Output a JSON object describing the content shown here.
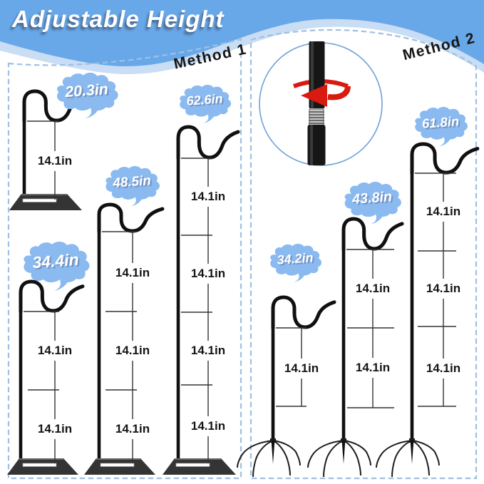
{
  "title": "Adjustable Height",
  "panels": [
    {
      "method_label": "Method 1",
      "mount_type": "base-plate"
    },
    {
      "method_label": "Method 2",
      "mount_type": "ground-stake"
    }
  ],
  "detail_inset": {
    "icon": "screw-together-rotation-icon",
    "parts": [
      "upper-pole",
      "rotate-arrow-icon",
      "threaded-joint-icon",
      "lower-pole"
    ]
  },
  "hooks": [
    {
      "id": "m1-h20",
      "panel": 0,
      "height_label": "20.3in",
      "segment_labels": [
        "14.1in"
      ]
    },
    {
      "id": "m1-h34",
      "panel": 0,
      "height_label": "34.4in",
      "segment_labels": [
        "14.1in",
        "14.1in"
      ]
    },
    {
      "id": "m1-h48",
      "panel": 0,
      "height_label": "48.5in",
      "segment_labels": [
        "14.1in",
        "14.1in",
        "14.1in"
      ]
    },
    {
      "id": "m1-h62",
      "panel": 0,
      "height_label": "62.6in",
      "segment_labels": [
        "14.1in",
        "14.1in",
        "14.1in",
        "14.1in"
      ]
    },
    {
      "id": "m2-h34",
      "panel": 1,
      "height_label": "34.2in",
      "segment_labels": [
        "14.1in"
      ]
    },
    {
      "id": "m2-h43",
      "panel": 1,
      "height_label": "43.8in",
      "segment_labels": [
        "14.1in",
        "14.1in"
      ]
    },
    {
      "id": "m2-h61",
      "panel": 1,
      "height_label": "61.8in",
      "segment_labels": [
        "14.1in",
        "14.1in",
        "14.1in"
      ]
    }
  ],
  "colors": {
    "header_blue": "#68a8e9",
    "header_light_wave": "#c9ddf5",
    "cloud_blue": "#8abaf0",
    "dash_border": "#9fc0e2",
    "metal_black": "#101010",
    "arrow_red": "#d81a10",
    "measure_line": "#333333"
  }
}
